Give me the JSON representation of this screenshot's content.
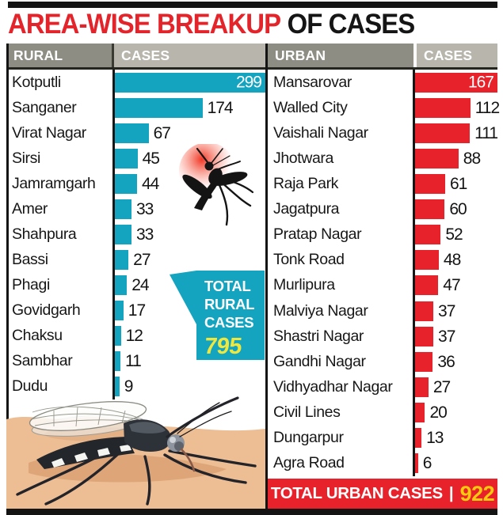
{
  "title": {
    "highlight": "AREA-WISE BREAKUP",
    "rest": "OF CASES"
  },
  "table_headers": {
    "rural": "RURAL",
    "rural_cases": "CASES",
    "urban": "URBAN",
    "urban_cases": "CASES"
  },
  "rural": {
    "rows": [
      {
        "name": "Kotputli",
        "cases": 299
      },
      {
        "name": "Sanganer",
        "cases": 174
      },
      {
        "name": "Virat Nagar",
        "cases": 67
      },
      {
        "name": "Sirsi",
        "cases": 45
      },
      {
        "name": "Jamramgarh",
        "cases": 44
      },
      {
        "name": "Amer",
        "cases": 33
      },
      {
        "name": "Shahpura",
        "cases": 33
      },
      {
        "name": "Bassi",
        "cases": 27
      },
      {
        "name": "Phagi",
        "cases": 24
      },
      {
        "name": "Govidgarh",
        "cases": 17
      },
      {
        "name": "Chaksu",
        "cases": 12
      },
      {
        "name": "Sambhar",
        "cases": 11
      },
      {
        "name": "Dudu",
        "cases": 9
      }
    ],
    "total": {
      "lines": [
        "TOTAL",
        "RURAL",
        "CASES"
      ],
      "value": "795"
    }
  },
  "urban": {
    "rows": [
      {
        "name": "Mansarovar",
        "cases": 167
      },
      {
        "name": "Walled City",
        "cases": 112
      },
      {
        "name": "Vaishali Nagar",
        "cases": 111
      },
      {
        "name": "Jhotwara",
        "cases": 88
      },
      {
        "name": "Raja Park",
        "cases": 61
      },
      {
        "name": "Jagatpura",
        "cases": 60
      },
      {
        "name": "Pratap Nagar",
        "cases": 52
      },
      {
        "name": "Tonk Road",
        "cases": 48
      },
      {
        "name": "Murlipura",
        "cases": 47
      },
      {
        "name": "Malviya Nagar",
        "cases": 37
      },
      {
        "name": "Shastri Nagar",
        "cases": 37
      },
      {
        "name": "Gandhi Nagar",
        "cases": 36
      },
      {
        "name": "Vidhyadhar Nagar",
        "cases": 27
      },
      {
        "name": "Civil Lines",
        "cases": 20
      },
      {
        "name": "Dungarpur",
        "cases": 13
      },
      {
        "name": "Agra Road",
        "cases": 6
      }
    ],
    "total": {
      "label": "TOTAL URBAN CASES",
      "separator": "|",
      "value": "922"
    }
  },
  "colors": {
    "rural_bar": "#14a4c0",
    "urban_bar": "#e8222b",
    "header_dark": "#8e8d83",
    "header_light": "#b8b6ac",
    "title_red": "#e3242b",
    "rural_total_yellow": "#f0e73e",
    "urban_total_yellow": "#fec90f",
    "skin": "#edbd93"
  },
  "icons": {
    "small": "mosquito-icon",
    "large": "mosquito-illustration"
  },
  "chart_data": [
    {
      "type": "bar",
      "orientation": "horizontal",
      "title": "Rural cases",
      "categories": [
        "Kotputli",
        "Sanganer",
        "Virat Nagar",
        "Sirsi",
        "Jamramgarh",
        "Amer",
        "Shahpura",
        "Bassi",
        "Phagi",
        "Govidgarh",
        "Chaksu",
        "Sambhar",
        "Dudu"
      ],
      "values": [
        299,
        174,
        67,
        45,
        44,
        33,
        33,
        27,
        24,
        17,
        12,
        11,
        9
      ],
      "total": 795,
      "xlim": [
        0,
        299
      ],
      "bar_color": "#14a4c0",
      "value_labels": "end of bar; max value labeled inside bar in white",
      "grid": false,
      "legend": "none"
    },
    {
      "type": "bar",
      "orientation": "horizontal",
      "title": "Urban cases",
      "categories": [
        "Mansarovar",
        "Walled City",
        "Vaishali Nagar",
        "Jhotwara",
        "Raja Park",
        "Jagatpura",
        "Pratap Nagar",
        "Tonk Road",
        "Murlipura",
        "Malviya Nagar",
        "Shastri Nagar",
        "Gandhi Nagar",
        "Vidhyadhar Nagar",
        "Civil Lines",
        "Dungarpur",
        "Agra Road"
      ],
      "values": [
        167,
        112,
        111,
        88,
        61,
        60,
        52,
        48,
        47,
        37,
        37,
        36,
        27,
        20,
        13,
        6
      ],
      "total": 922,
      "xlim": [
        0,
        167
      ],
      "bar_color": "#e8222b",
      "value_labels": "end of bar; max value labeled inside bar in white",
      "grid": false,
      "legend": "none"
    }
  ]
}
